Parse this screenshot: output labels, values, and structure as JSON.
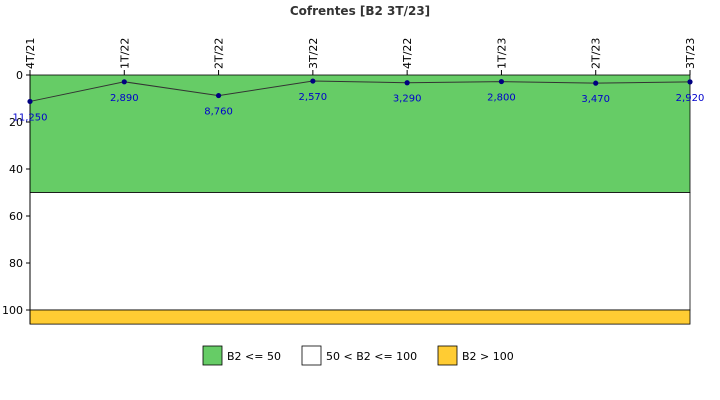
{
  "chart_data": {
    "type": "line",
    "title": "Cofrentes [B2 3T/23]",
    "categories": [
      "4T/21",
      "1T/22",
      "2T/22",
      "3T/22",
      "4T/22",
      "1T/23",
      "2T/23",
      "3T/23"
    ],
    "values": [
      11.25,
      2.89,
      8.76,
      2.57,
      3.29,
      2.8,
      3.47,
      2.92
    ],
    "data_labels": [
      "11,250",
      "2,890",
      "8,760",
      "2,570",
      "3,290",
      "2,800",
      "3,470",
      "2,920"
    ],
    "y_ticks": [
      "0",
      "20",
      "40",
      "60",
      "80",
      "100"
    ],
    "ylim": [
      0,
      106
    ],
    "y_inverted": true,
    "x_axis_position": "top",
    "bands": [
      {
        "from": 0,
        "to": 50,
        "color": "#66cc66",
        "label": "B2 <= 50"
      },
      {
        "from": 50,
        "to": 100,
        "color": "#ffffff",
        "label": "50 < B2 <= 100"
      },
      {
        "from": 100,
        "to": 106,
        "color": "#ffcc33",
        "label": "B2 > 100"
      }
    ],
    "line_color": "#333333",
    "marker_color": "#000080",
    "label_color": "#0000cc",
    "legend_position": "bottom"
  }
}
